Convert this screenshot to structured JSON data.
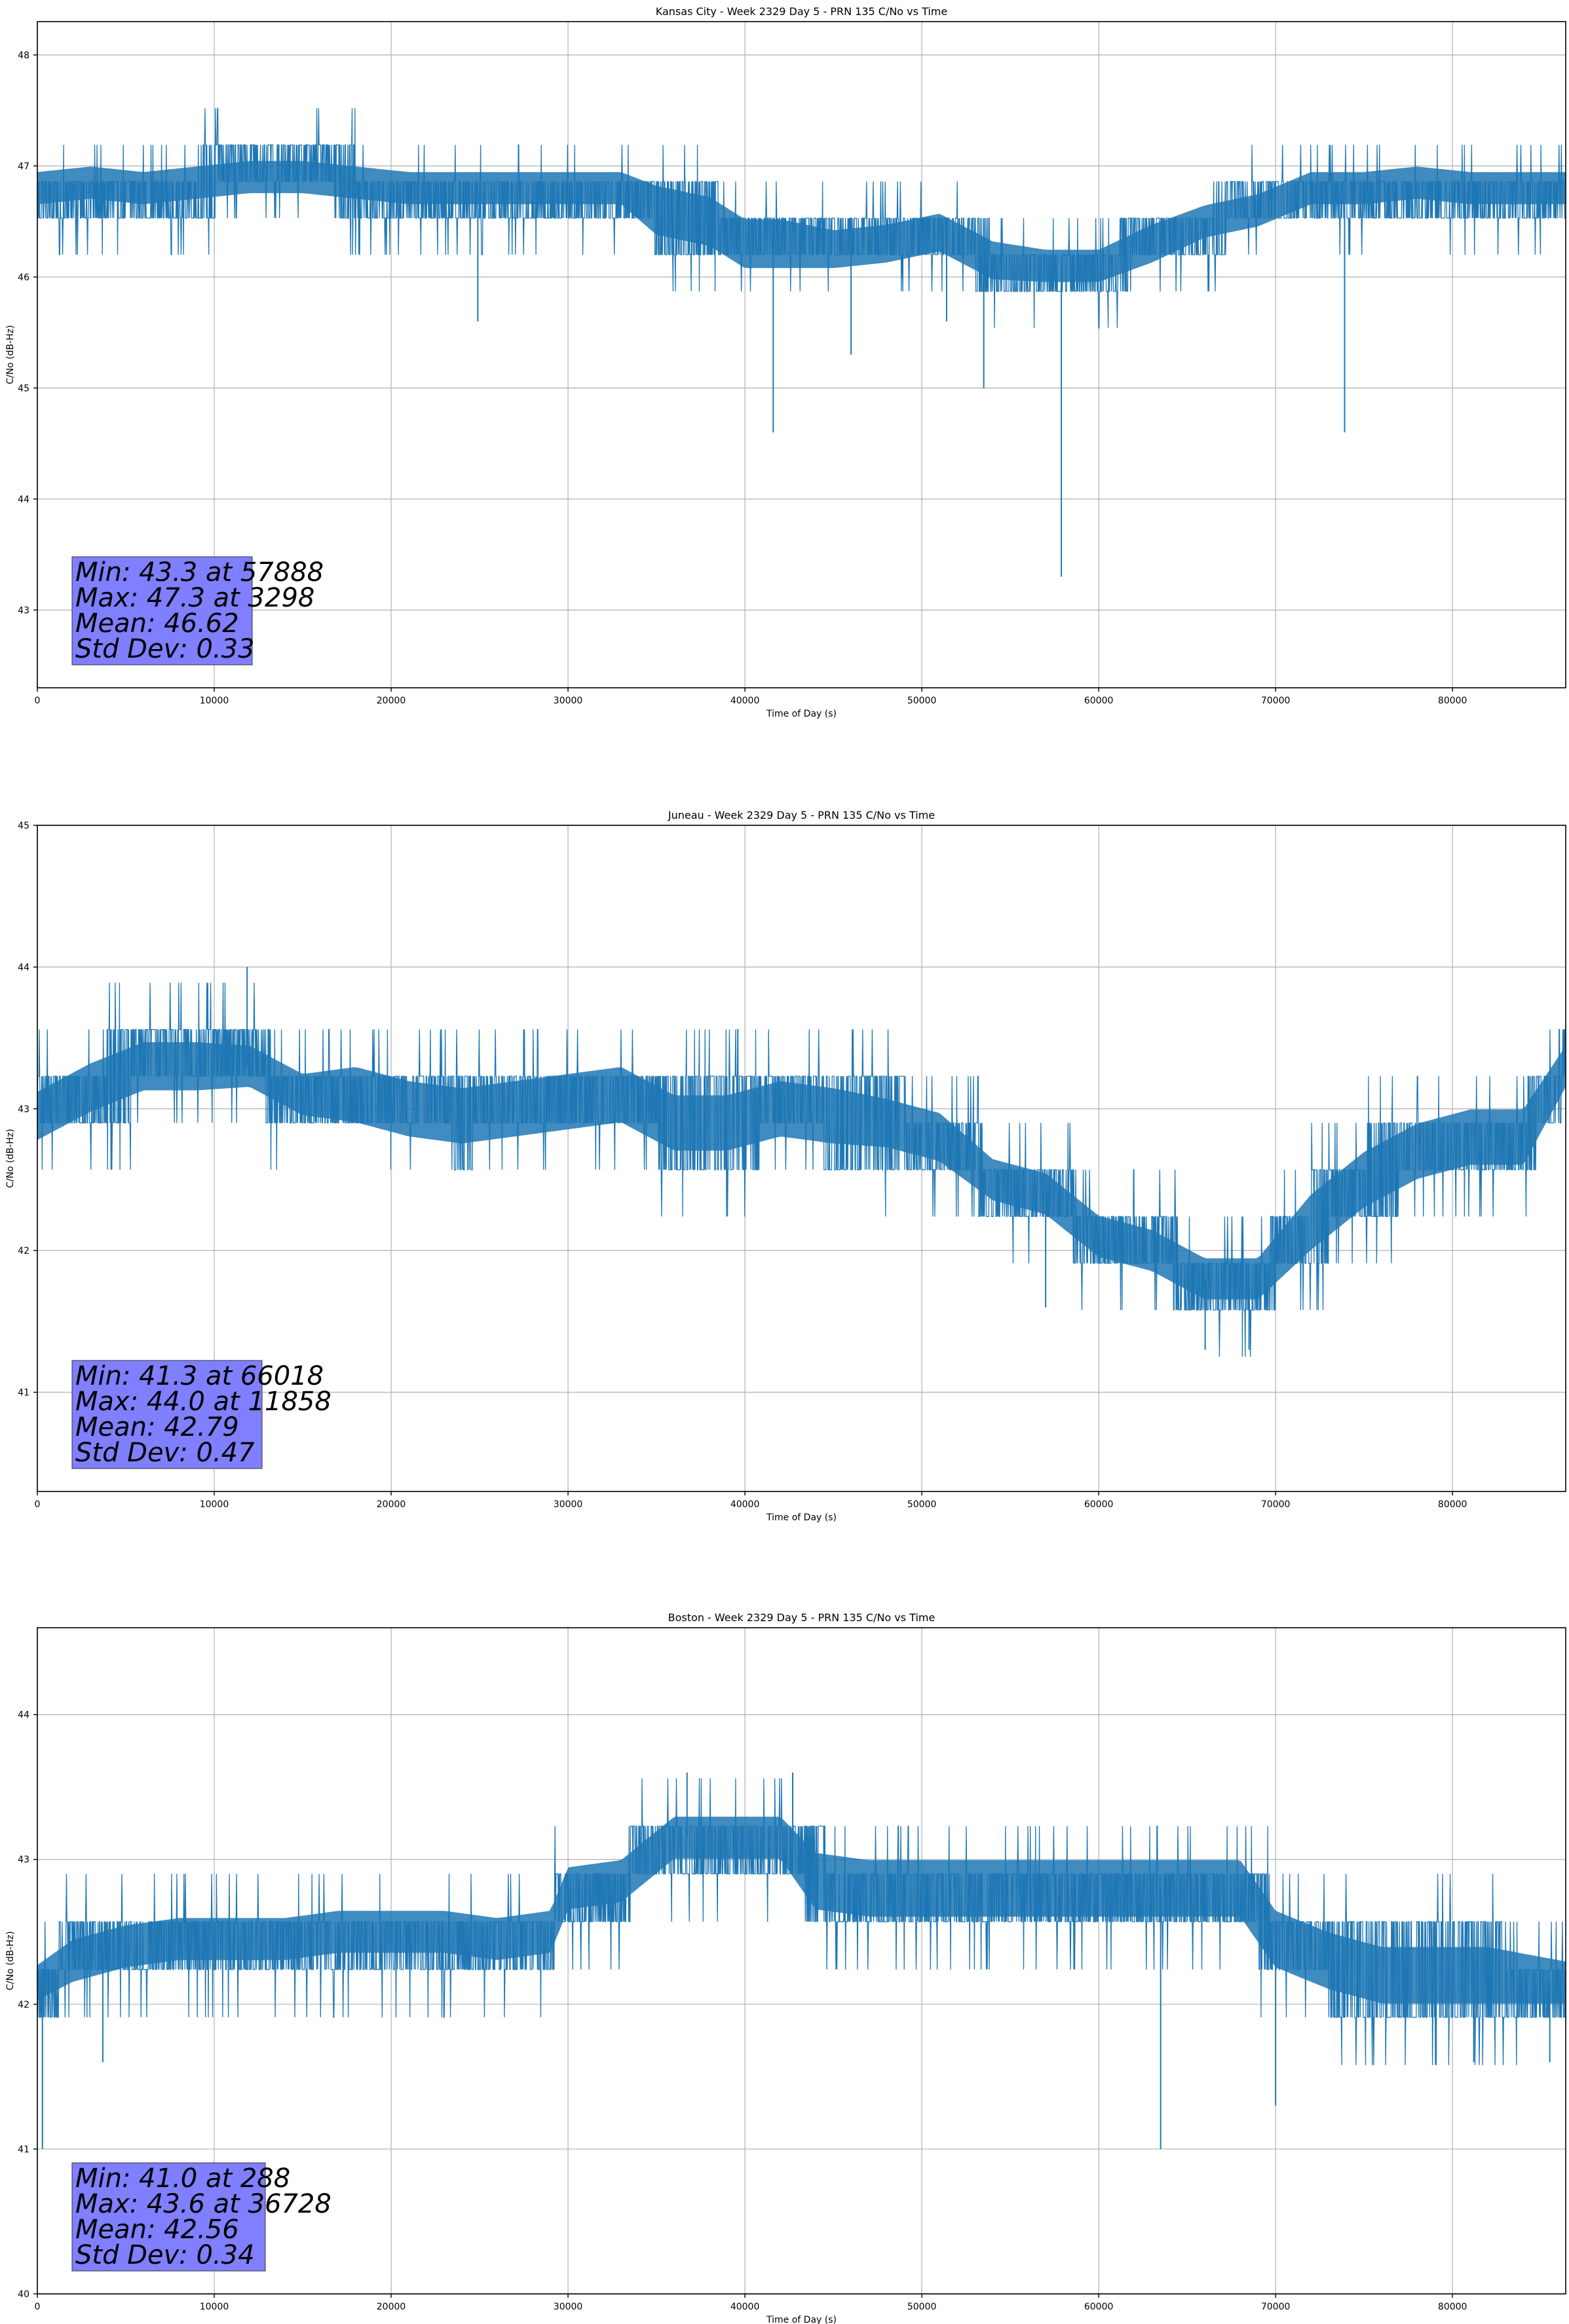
{
  "chart_data": [
    {
      "type": "line",
      "title": "Kansas City - Week 2329 Day 5 - PRN 135 C/No vs Time",
      "xlabel": "Time of Day (s)",
      "ylabel": "C/No (dB-Hz)",
      "xlim": [
        0,
        86400
      ],
      "ylim": [
        42.3,
        48.3
      ],
      "xticks": [
        0,
        10000,
        20000,
        30000,
        40000,
        50000,
        60000,
        70000,
        80000
      ],
      "yticks": [
        43,
        44,
        45,
        46,
        47,
        48
      ],
      "grid": true,
      "color": "#1f77b4",
      "series": [
        {
          "name": "C/No",
          "x": [
            0,
            3000,
            6000,
            9000,
            12000,
            15000,
            18000,
            21000,
            24000,
            27000,
            30000,
            33000,
            35000,
            38000,
            40000,
            42000,
            45000,
            48000,
            51000,
            54000,
            57000,
            60000,
            63000,
            66000,
            69000,
            72000,
            75000,
            78000,
            81000,
            84000,
            86400
          ],
          "y": [
            46.8,
            46.85,
            46.8,
            46.85,
            46.9,
            46.9,
            46.85,
            46.8,
            46.8,
            46.8,
            46.8,
            46.8,
            46.6,
            46.5,
            46.3,
            46.3,
            46.25,
            46.3,
            46.4,
            46.15,
            46.1,
            46.1,
            46.3,
            46.5,
            46.6,
            46.8,
            46.8,
            46.85,
            46.8,
            46.8,
            46.8
          ],
          "band": [
            0.35,
            0.35,
            0.35,
            0.35,
            0.35,
            0.35,
            0.35,
            0.35,
            0.35,
            0.35,
            0.35,
            0.35,
            0.5,
            0.5,
            0.5,
            0.5,
            0.4,
            0.4,
            0.4,
            0.4,
            0.35,
            0.35,
            0.4,
            0.35,
            0.35,
            0.35,
            0.35,
            0.35,
            0.35,
            0.35,
            0.35
          ]
        }
      ],
      "spikes": [
        [
          24900,
          45.6
        ],
        [
          41600,
          44.6
        ],
        [
          46000,
          45.3
        ],
        [
          51400,
          45.6
        ],
        [
          53500,
          45.0
        ],
        [
          57888,
          43.3
        ],
        [
          73900,
          44.6
        ]
      ],
      "stats_lines": [
        "Min: 43.3 at 57888",
        "Max: 47.3 at 3298",
        "Mean: 46.62",
        "Std Dev: 0.33"
      ]
    },
    {
      "type": "line",
      "title": "Juneau - Week 2329 Day 5 - PRN 135 C/No vs Time",
      "xlabel": "Time of Day (s)",
      "ylabel": "C/No (dB-Hz)",
      "xlim": [
        0,
        86400
      ],
      "ylim": [
        40.3,
        45.0
      ],
      "xticks": [
        0,
        10000,
        20000,
        30000,
        40000,
        50000,
        60000,
        70000,
        80000
      ],
      "yticks": [
        41,
        42,
        43,
        44,
        45
      ],
      "grid": true,
      "color": "#1f77b4",
      "series": [
        {
          "name": "C/No",
          "x": [
            0,
            3000,
            6000,
            9000,
            12000,
            15000,
            18000,
            21000,
            24000,
            27000,
            30000,
            33000,
            36000,
            39000,
            42000,
            45000,
            48000,
            51000,
            54000,
            57000,
            60000,
            63000,
            66000,
            69000,
            72000,
            75000,
            78000,
            81000,
            84000,
            86400
          ],
          "y": [
            42.95,
            43.15,
            43.3,
            43.3,
            43.3,
            43.1,
            43.1,
            43.0,
            42.95,
            43.0,
            43.05,
            43.1,
            42.9,
            42.9,
            43.0,
            42.95,
            42.9,
            42.8,
            42.5,
            42.4,
            42.1,
            42.0,
            41.8,
            41.8,
            42.2,
            42.5,
            42.7,
            42.8,
            42.8,
            43.3
          ],
          "band": [
            0.4,
            0.4,
            0.4,
            0.4,
            0.35,
            0.35,
            0.45,
            0.45,
            0.45,
            0.45,
            0.45,
            0.45,
            0.45,
            0.45,
            0.45,
            0.45,
            0.4,
            0.4,
            0.35,
            0.35,
            0.35,
            0.35,
            0.35,
            0.35,
            0.45,
            0.45,
            0.45,
            0.45,
            0.45,
            0.35
          ]
        }
      ],
      "spikes": [
        [
          11858,
          44.0
        ],
        [
          57000,
          41.6
        ],
        [
          66018,
          41.3
        ],
        [
          68500,
          41.3
        ]
      ],
      "stats_lines": [
        "Min: 41.3 at 66018",
        "Max: 44.0 at 11858",
        "Mean: 42.79",
        "Std Dev: 0.47"
      ]
    },
    {
      "type": "line",
      "title": "Boston - Week 2329 Day 5 - PRN 135 C/No vs Time",
      "xlabel": "Time of Day (s)",
      "ylabel": "C/No (dB-Hz)",
      "xlim": [
        0,
        86400
      ],
      "ylim": [
        40.0,
        44.6
      ],
      "xticks": [
        0,
        10000,
        20000,
        30000,
        40000,
        50000,
        60000,
        70000,
        80000
      ],
      "yticks": [
        40,
        41,
        42,
        43,
        44
      ],
      "grid": true,
      "color": "#1f77b4",
      "series": [
        {
          "name": "C/No",
          "x": [
            0,
            2000,
            5000,
            8000,
            11000,
            14000,
            17000,
            20000,
            23000,
            26000,
            29000,
            30000,
            33000,
            36000,
            39000,
            42000,
            44000,
            47000,
            50000,
            53000,
            56000,
            59000,
            62000,
            65000,
            68000,
            70000,
            73000,
            76000,
            79000,
            82000,
            86400
          ],
          "y": [
            42.15,
            42.3,
            42.4,
            42.45,
            42.45,
            42.45,
            42.5,
            42.5,
            42.5,
            42.45,
            42.5,
            42.8,
            42.85,
            43.15,
            43.15,
            43.15,
            42.85,
            42.8,
            42.8,
            42.8,
            42.8,
            42.8,
            42.8,
            42.8,
            42.8,
            42.45,
            42.3,
            42.2,
            42.2,
            42.2,
            42.15
          ],
          "band": [
            0.3,
            0.35,
            0.35,
            0.35,
            0.35,
            0.35,
            0.35,
            0.35,
            0.35,
            0.35,
            0.35,
            0.35,
            0.35,
            0.35,
            0.35,
            0.35,
            0.45,
            0.45,
            0.45,
            0.45,
            0.45,
            0.45,
            0.45,
            0.45,
            0.45,
            0.45,
            0.45,
            0.45,
            0.45,
            0.45,
            0.35
          ]
        }
      ],
      "spikes": [
        [
          288,
          41.0
        ],
        [
          3700,
          41.6
        ],
        [
          63500,
          41.0
        ],
        [
          70000,
          41.3
        ],
        [
          81200,
          41.6
        ],
        [
          85500,
          41.6
        ],
        [
          36728,
          43.6
        ],
        [
          42700,
          43.6
        ]
      ],
      "stats_lines": [
        "Min: 41.0 at 288",
        "Max: 43.6 at 36728",
        "Mean: 42.56",
        "Std Dev: 0.34"
      ]
    }
  ]
}
